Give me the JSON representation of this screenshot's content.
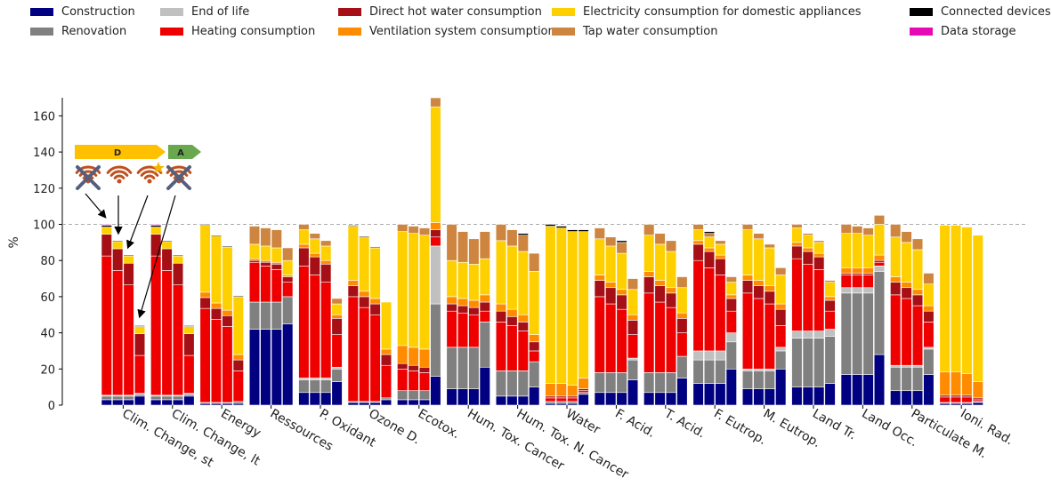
{
  "chart_data": {
    "type": "bar",
    "stacked": true,
    "ylabel": "%",
    "ylim": [
      0,
      170
    ],
    "yticks": [
      0,
      20,
      40,
      60,
      80,
      100,
      120,
      140,
      160
    ],
    "reference_line": {
      "y": 100,
      "style": "dashed",
      "color": "#aaaaaa"
    },
    "colors": {
      "Construction": "#000080",
      "Renovation": "#808080",
      "End of life": "#c0c0c0",
      "Heating consumption": "#ee0000",
      "Direct hot water consumption": "#a50f15",
      "Ventilation system consumption": "#ff8c00",
      "Electricity consumption for domestic appliances": "#ffd000",
      "Tap water consumption": "#cd853f",
      "Connected devices": "#000000",
      "Data storage": "#e60ab4"
    },
    "legend": [
      [
        "Construction",
        "Renovation"
      ],
      [
        "End of life",
        "Heating consumption"
      ],
      [
        "Direct hot water consumption",
        "Ventilation system consumption"
      ],
      [
        "Electricity consumption for domestic appliances",
        "Tap water consumption"
      ],
      [
        "Connected devices",
        "Data storage"
      ]
    ],
    "component_order": [
      "Construction",
      "Renovation",
      "End of life",
      "Heating consumption",
      "Direct hot water consumption",
      "Ventilation system consumption",
      "Electricity consumption for domestic appliances",
      "Tap water consumption",
      "Connected devices",
      "Data storage"
    ],
    "categories": [
      {
        "label": "Clim. Change, st",
        "bars": [
          [
            3,
            2,
            0.5,
            77,
            12,
            0,
            4,
            0,
            1,
            0.5
          ],
          [
            3,
            2,
            0.5,
            69,
            12,
            0,
            4,
            0,
            0.5,
            0
          ],
          [
            3,
            2,
            0.5,
            61,
            12,
            0,
            4,
            0,
            0.5,
            0
          ],
          [
            5,
            1,
            0.5,
            21,
            12,
            0,
            4,
            0,
            0.5,
            0
          ]
        ]
      },
      {
        "label": "Clim. Change, lt",
        "bars": [
          [
            3,
            2,
            0.5,
            77,
            12,
            0,
            4,
            0,
            1,
            0.5
          ],
          [
            3,
            2,
            0.5,
            69,
            12,
            0,
            4,
            0,
            0.5,
            0
          ],
          [
            3,
            2,
            0.5,
            61,
            12,
            0,
            4,
            0,
            0.5,
            0
          ],
          [
            5,
            1,
            0.5,
            21,
            12,
            0,
            4,
            0,
            0.5,
            0
          ]
        ]
      },
      {
        "label": "Energy",
        "bars": [
          [
            1,
            0.5,
            0,
            52,
            6,
            3,
            37,
            0,
            0.5,
            0
          ],
          [
            1,
            0.5,
            0,
            46,
            6,
            3,
            37,
            0,
            0.5,
            0
          ],
          [
            1,
            0.5,
            0,
            42,
            6,
            3,
            35,
            0,
            0.5,
            0
          ],
          [
            1,
            1,
            0,
            17,
            6,
            3,
            32,
            0,
            0.5,
            0
          ]
        ]
      },
      {
        "label": "Ressources",
        "bars": [
          [
            42,
            15,
            0,
            22,
            1,
            1,
            8,
            10,
            0,
            0
          ],
          [
            42,
            15,
            0,
            20,
            2,
            1,
            8,
            10,
            0,
            0
          ],
          [
            42,
            15,
            0,
            18,
            3,
            1,
            8,
            10,
            0,
            0
          ],
          [
            45,
            15,
            0,
            8,
            3,
            1,
            8,
            7,
            0,
            0
          ]
        ]
      },
      {
        "label": "P. Oxidant",
        "bars": [
          [
            7,
            7,
            1,
            62,
            10,
            2,
            8,
            3,
            0,
            0
          ],
          [
            7,
            7,
            1,
            57,
            10,
            2,
            8,
            3,
            0,
            0
          ],
          [
            7,
            7,
            1,
            53,
            10,
            2,
            8,
            3,
            0,
            0
          ],
          [
            13,
            7,
            1,
            18,
            9,
            2,
            6,
            3,
            0,
            0
          ]
        ]
      },
      {
        "label": "Ozone D.",
        "bars": [
          [
            1.5,
            0.5,
            0,
            58,
            6,
            3,
            30,
            0,
            0.5,
            0
          ],
          [
            1.5,
            0.5,
            0,
            52,
            6,
            3,
            30,
            0,
            0.5,
            0
          ],
          [
            1.5,
            0.5,
            0,
            48,
            6,
            3,
            28,
            0,
            0.5,
            0
          ],
          [
            3,
            1,
            0,
            18,
            6,
            3,
            26,
            0,
            0,
            0
          ]
        ]
      },
      {
        "label": "Ecotox.",
        "bars": [
          [
            3,
            5,
            0,
            12,
            3,
            10,
            63,
            4,
            0,
            0
          ],
          [
            3,
            5,
            0,
            11,
            3,
            10,
            63,
            4,
            0,
            0
          ],
          [
            3,
            5,
            0,
            10,
            3,
            10,
            63,
            4,
            0,
            0
          ],
          [
            16,
            40,
            32,
            5,
            4,
            4,
            64,
            5,
            0,
            0
          ]
        ]
      },
      {
        "label": "Hum. Tox. Cancer",
        "bars": [
          [
            9,
            23,
            0,
            20,
            4,
            4,
            20,
            20,
            0,
            0
          ],
          [
            9,
            23,
            0,
            19,
            4,
            4,
            20,
            17,
            0,
            0
          ],
          [
            9,
            23,
            0,
            18,
            4,
            4,
            20,
            14,
            0,
            0
          ],
          [
            21,
            25,
            0,
            6,
            5,
            4,
            20,
            15,
            0,
            0
          ]
        ]
      },
      {
        "label": "Hum. Tox. N. Cancer",
        "bars": [
          [
            5,
            14,
            0,
            27,
            6,
            4,
            35,
            9,
            0,
            0
          ],
          [
            5,
            14,
            0,
            25,
            5,
            4,
            35,
            9,
            0,
            0
          ],
          [
            5,
            14,
            0,
            22,
            5,
            4,
            35,
            9,
            1,
            0
          ],
          [
            10,
            14,
            0,
            6,
            5,
            4,
            35,
            10,
            0,
            0
          ]
        ]
      },
      {
        "label": "Water",
        "bars": [
          [
            1,
            1,
            0,
            2,
            1,
            7,
            87,
            0,
            1,
            0
          ],
          [
            1,
            1,
            0,
            2,
            1,
            7,
            86,
            0,
            1,
            0
          ],
          [
            1,
            1,
            0,
            2,
            1,
            6,
            85,
            0,
            1,
            0
          ],
          [
            6,
            1,
            0,
            1,
            1,
            6,
            81,
            0,
            1,
            0
          ]
        ]
      },
      {
        "label": "F. Acid.",
        "bars": [
          [
            7,
            11,
            0,
            42,
            9,
            3,
            20,
            6,
            0,
            0
          ],
          [
            7,
            11,
            0,
            38,
            9,
            3,
            20,
            5,
            0,
            0
          ],
          [
            7,
            11,
            0,
            35,
            8,
            3,
            20,
            6,
            1,
            0
          ],
          [
            14,
            11,
            1,
            13,
            8,
            3,
            14,
            6,
            0,
            0
          ]
        ]
      },
      {
        "label": "T. Acid.",
        "bars": [
          [
            7,
            11,
            0,
            44,
            9,
            3,
            20,
            6,
            0,
            0
          ],
          [
            7,
            11,
            0,
            39,
            9,
            3,
            20,
            6,
            0,
            0
          ],
          [
            7,
            11,
            0,
            36,
            8,
            3,
            20,
            6,
            0,
            0
          ],
          [
            15,
            12,
            0,
            13,
            8,
            3,
            14,
            6,
            0,
            0
          ]
        ]
      },
      {
        "label": "F. Eutrop.",
        "bars": [
          [
            12,
            13,
            5,
            50,
            9,
            2,
            6,
            3,
            0,
            0
          ],
          [
            12,
            13,
            5,
            46,
            9,
            2,
            6,
            2,
            1,
            0
          ],
          [
            12,
            13,
            5,
            42,
            9,
            2,
            6,
            2,
            0,
            0
          ],
          [
            20,
            15,
            5,
            12,
            7,
            2,
            7,
            3,
            0,
            0
          ]
        ]
      },
      {
        "label": "M. Eutrop.",
        "bars": [
          [
            9,
            10,
            1,
            42,
            7,
            3,
            25,
            3,
            0,
            0
          ],
          [
            9,
            10,
            1,
            39,
            7,
            3,
            23,
            3,
            0,
            0
          ],
          [
            9,
            10,
            1,
            36,
            7,
            3,
            21,
            2,
            0,
            0
          ],
          [
            20,
            10,
            2,
            12,
            9,
            3,
            16,
            4,
            0,
            0
          ]
        ]
      },
      {
        "label": "Land Tr.",
        "bars": [
          [
            10,
            27,
            4,
            40,
            7,
            2,
            8,
            2,
            0,
            0
          ],
          [
            10,
            27,
            4,
            37,
            7,
            2,
            7,
            1,
            0,
            0
          ],
          [
            10,
            27,
            4,
            34,
            7,
            2,
            6,
            1,
            0,
            0
          ],
          [
            12,
            26,
            4,
            10,
            6,
            2,
            8,
            1,
            0,
            0
          ]
        ]
      },
      {
        "label": "Land Occ.",
        "bars": [
          [
            17,
            45,
            3,
            7,
            1,
            3,
            19,
            5,
            0,
            0
          ],
          [
            17,
            45,
            3,
            7,
            1,
            3,
            19,
            4,
            0,
            0
          ],
          [
            17,
            45,
            3,
            7,
            1,
            3,
            18,
            4,
            0,
            0
          ],
          [
            28,
            46,
            3,
            2,
            1,
            3,
            17,
            5,
            0,
            0
          ]
        ]
      },
      {
        "label": "Particulate M.",
        "bars": [
          [
            8,
            13,
            1,
            39,
            7,
            3,
            22,
            7,
            0,
            0
          ],
          [
            8,
            13,
            1,
            37,
            6,
            3,
            22,
            6,
            0,
            0
          ],
          [
            8,
            13,
            1,
            33,
            6,
            3,
            22,
            6,
            0,
            0
          ],
          [
            17,
            14,
            1,
            14,
            6,
            3,
            12,
            6,
            0,
            0
          ]
        ]
      },
      {
        "label": "Ioni. Rad.",
        "bars": [
          [
            1,
            0.5,
            0,
            3,
            1,
            13,
            81,
            0,
            0,
            0
          ],
          [
            1,
            0.5,
            0,
            3,
            1,
            13,
            81,
            0,
            0,
            0
          ],
          [
            1,
            0.5,
            0,
            3,
            1,
            12,
            81,
            0,
            0,
            0
          ],
          [
            1.5,
            0.5,
            0,
            1,
            1,
            9,
            81,
            0,
            0,
            0
          ]
        ]
      }
    ],
    "annotation": {
      "label_scale": [
        "D",
        "A"
      ],
      "colors": {
        "D": "#ffc000",
        "A": "#6aa84f",
        "wifi": "#c0501f",
        "cross": "#555f7d",
        "star": "#f5b400"
      }
    }
  }
}
